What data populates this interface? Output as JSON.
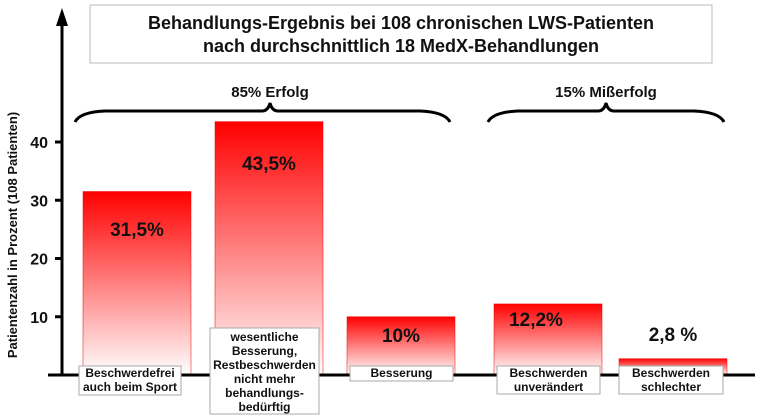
{
  "chart_data": {
    "type": "bar",
    "title": [
      "Behandlungs-Ergebnis bei 108 chronischen LWS-Patienten",
      "nach durchschnittlich 18 MedX-Behandlungen"
    ],
    "ylabel": "Patientenzahl in Prozent (108 Patienten)",
    "xlabel": "",
    "ylim": [
      0,
      45
    ],
    "yticks": [
      10,
      20,
      30,
      40
    ],
    "grid": false,
    "categories": [
      [
        "Beschwerdefrei",
        "auch beim Sport"
      ],
      [
        "wesentliche",
        "Besserung,",
        "Restbeschwerden",
        "nicht mehr",
        "behandlungs-",
        "bedürftig"
      ],
      [
        "Besserung"
      ],
      [
        "Beschwerden",
        "unverändert"
      ],
      [
        "Beschwerden",
        "schlechter"
      ]
    ],
    "values": [
      31.5,
      43.5,
      10,
      12.2,
      2.8
    ],
    "data_labels": [
      "31,5%",
      "43,5%",
      "10%",
      "12,2%",
      "2,8 %"
    ],
    "groups": [
      {
        "label": "85% Erfolg",
        "bars": [
          0,
          1,
          2
        ]
      },
      {
        "label": "15% Mißerfolg",
        "bars": [
          3,
          4
        ]
      }
    ],
    "colors": {
      "bar_top": "#ff0000",
      "bar_bottom": "#ffffff",
      "axis": "#000000"
    }
  }
}
